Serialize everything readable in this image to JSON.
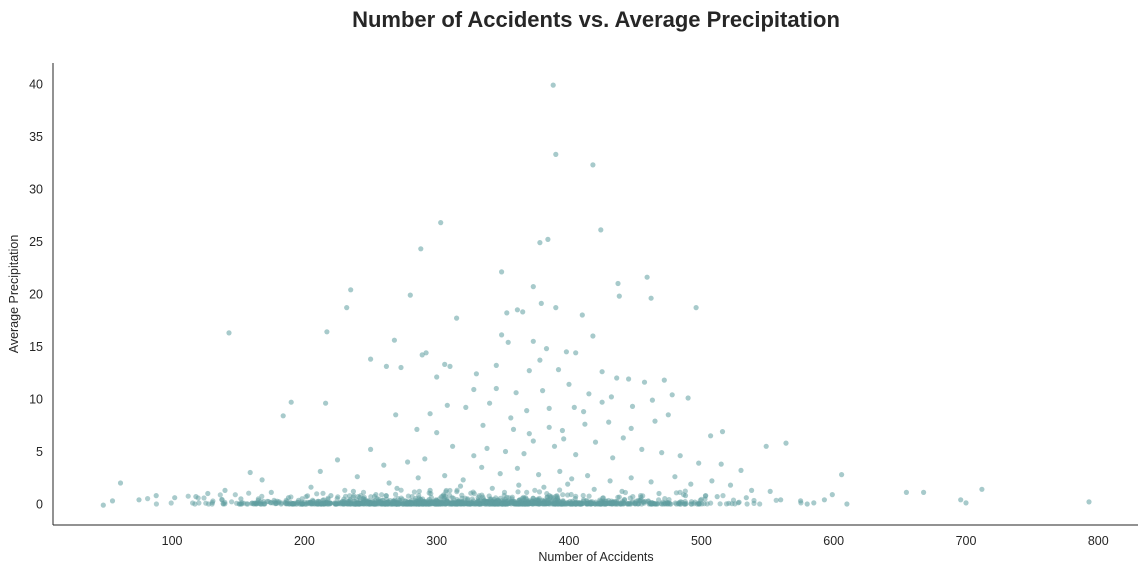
{
  "chart_data": {
    "type": "scatter",
    "title": "Number of Accidents vs. Average Precipitation",
    "xlabel": "Number of Accidents",
    "ylabel": "Average Precipitation",
    "xlim": [
      10,
      830
    ],
    "ylim": [
      -2,
      42
    ],
    "xticks": [
      100,
      200,
      300,
      400,
      500,
      600,
      700,
      800
    ],
    "yticks": [
      0,
      5,
      10,
      15,
      20,
      25,
      30,
      35,
      40
    ],
    "grid": false,
    "legend": "none",
    "marker_color": "#5F9EA0",
    "series": [
      {
        "points": [
          [
            388,
            39.9
          ],
          [
            390,
            33.3
          ],
          [
            418,
            32.3
          ],
          [
            303,
            26.8
          ],
          [
            424,
            26.1
          ],
          [
            384,
            25.2
          ],
          [
            378,
            24.9
          ],
          [
            288,
            24.3
          ],
          [
            349,
            22.1
          ],
          [
            373,
            20.7
          ],
          [
            437,
            21.0
          ],
          [
            459,
            21.6
          ],
          [
            438,
            19.8
          ],
          [
            462,
            19.6
          ],
          [
            235,
            20.4
          ],
          [
            280,
            19.9
          ],
          [
            232,
            18.7
          ],
          [
            353,
            18.2
          ],
          [
            361,
            18.5
          ],
          [
            365,
            18.3
          ],
          [
            390,
            18.7
          ],
          [
            410,
            18.0
          ],
          [
            496,
            18.7
          ],
          [
            379,
            19.1
          ],
          [
            143,
            16.3
          ],
          [
            217,
            16.4
          ],
          [
            315,
            17.7
          ],
          [
            349,
            16.1
          ],
          [
            354,
            15.4
          ],
          [
            373,
            15.5
          ],
          [
            383,
            14.8
          ],
          [
            398,
            14.5
          ],
          [
            405,
            14.4
          ],
          [
            418,
            16.0
          ],
          [
            268,
            15.6
          ],
          [
            250,
            13.8
          ],
          [
            262,
            13.1
          ],
          [
            273,
            13.0
          ],
          [
            289,
            14.2
          ],
          [
            292,
            14.4
          ],
          [
            300,
            12.1
          ],
          [
            306,
            13.3
          ],
          [
            310,
            13.1
          ],
          [
            330,
            12.4
          ],
          [
            345,
            13.2
          ],
          [
            370,
            12.7
          ],
          [
            378,
            13.7
          ],
          [
            392,
            12.8
          ],
          [
            425,
            12.6
          ],
          [
            436,
            12.0
          ],
          [
            445,
            11.9
          ],
          [
            457,
            11.6
          ],
          [
            472,
            11.8
          ],
          [
            184,
            8.4
          ],
          [
            190,
            9.7
          ],
          [
            216,
            9.6
          ],
          [
            269,
            8.5
          ],
          [
            285,
            7.1
          ],
          [
            295,
            8.6
          ],
          [
            308,
            9.4
          ],
          [
            322,
            9.2
          ],
          [
            340,
            9.6
          ],
          [
            356,
            8.2
          ],
          [
            368,
            8.9
          ],
          [
            385,
            9.1
          ],
          [
            404,
            9.2
          ],
          [
            411,
            8.8
          ],
          [
            425,
            9.7
          ],
          [
            448,
            9.3
          ],
          [
            463,
            9.9
          ],
          [
            478,
            10.4
          ],
          [
            490,
            10.1
          ],
          [
            507,
            6.5
          ],
          [
            516,
            6.9
          ],
          [
            549,
            5.5
          ],
          [
            564,
            5.8
          ],
          [
            250,
            5.2
          ],
          [
            260,
            3.7
          ],
          [
            278,
            4.0
          ],
          [
            291,
            4.3
          ],
          [
            312,
            5.5
          ],
          [
            328,
            4.6
          ],
          [
            338,
            5.3
          ],
          [
            352,
            5.0
          ],
          [
            366,
            4.8
          ],
          [
            373,
            6.0
          ],
          [
            389,
            5.5
          ],
          [
            396,
            6.2
          ],
          [
            405,
            4.7
          ],
          [
            420,
            5.9
          ],
          [
            433,
            4.4
          ],
          [
            441,
            6.3
          ],
          [
            455,
            5.2
          ],
          [
            470,
            4.9
          ],
          [
            484,
            4.6
          ],
          [
            498,
            3.9
          ],
          [
            515,
            3.8
          ],
          [
            530,
            3.2
          ],
          [
            168,
            2.3
          ],
          [
            159,
            3.0
          ],
          [
            225,
            4.2
          ],
          [
            212,
            3.1
          ],
          [
            240,
            2.6
          ],
          [
            264,
            2.0
          ],
          [
            286,
            2.5
          ],
          [
            306,
            2.7
          ],
          [
            320,
            2.3
          ],
          [
            334,
            3.5
          ],
          [
            348,
            2.9
          ],
          [
            361,
            3.4
          ],
          [
            377,
            2.8
          ],
          [
            393,
            3.1
          ],
          [
            402,
            2.4
          ],
          [
            414,
            2.7
          ],
          [
            431,
            2.2
          ],
          [
            447,
            2.5
          ],
          [
            462,
            2.1
          ],
          [
            480,
            2.6
          ],
          [
            492,
            1.9
          ],
          [
            508,
            2.2
          ],
          [
            522,
            1.8
          ],
          [
            538,
            1.3
          ],
          [
            552,
            1.2
          ],
          [
            606,
            2.8
          ],
          [
            599,
            0.9
          ],
          [
            593,
            0.4
          ],
          [
            655,
            1.1
          ],
          [
            668,
            1.1
          ],
          [
            696,
            0.4
          ],
          [
            700,
            0.1
          ],
          [
            712,
            1.4
          ],
          [
            793,
            0.2
          ],
          [
            61,
            2.0
          ],
          [
            55,
            0.3
          ],
          [
            48,
            -0.1
          ],
          [
            75,
            0.4
          ],
          [
            88,
            0.8
          ],
          [
            102,
            0.6
          ],
          [
            118,
            0.7
          ],
          [
            127,
            1.0
          ],
          [
            140,
            1.3
          ],
          [
            152,
            0.5
          ],
          [
            175,
            1.1
          ],
          [
            188,
            0.6
          ],
          [
            205,
            1.6
          ],
          [
            220,
            0.8
          ],
          [
            237,
            1.2
          ],
          [
            254,
            0.9
          ],
          [
            270,
            1.5
          ],
          [
            295,
            1.3
          ],
          [
            318,
            1.7
          ],
          [
            342,
            1.5
          ],
          [
            362,
            1.8
          ],
          [
            381,
            1.6
          ],
          [
            399,
            1.9
          ],
          [
            419,
            1.4
          ],
          [
            440,
            1.2
          ],
          [
            468,
            1.0
          ],
          [
            488,
            0.8
          ],
          [
            512,
            0.7
          ],
          [
            534,
            0.6
          ],
          [
            560,
            0.4
          ],
          [
            575,
            0.3
          ],
          [
            585,
            0.1
          ],
          [
            610,
            0.0
          ],
          [
            580,
            0.0
          ],
          [
            430,
            7.8
          ],
          [
            385,
            7.3
          ],
          [
            447,
            7.2
          ],
          [
            370,
            6.7
          ],
          [
            335,
            7.5
          ],
          [
            395,
            7.0
          ],
          [
            412,
            7.6
          ],
          [
            358,
            7.1
          ],
          [
            465,
            7.9
          ],
          [
            475,
            8.5
          ],
          [
            345,
            11.0
          ],
          [
            360,
            10.6
          ],
          [
            380,
            10.8
          ],
          [
            400,
            11.4
          ],
          [
            415,
            10.5
          ],
          [
            328,
            10.9
          ],
          [
            432,
            10.2
          ],
          [
            300,
            6.8
          ]
        ]
      }
    ]
  }
}
